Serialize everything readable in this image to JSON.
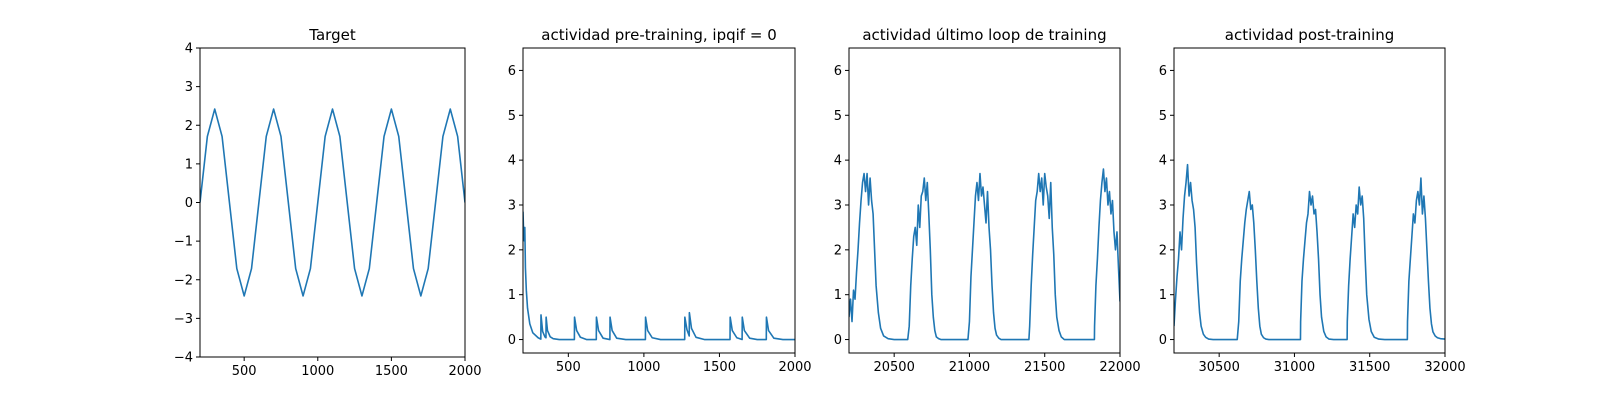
{
  "figure": {
    "background": "#ffffff",
    "line_color": "#1f77b4"
  },
  "chart_data": [
    {
      "id": "target",
      "type": "line",
      "title": "Target",
      "xlabel": "",
      "ylabel": "",
      "xlim": [
        200,
        2000
      ],
      "ylim": [
        -4,
        4
      ],
      "xticks": [
        500,
        1000,
        1500,
        2000
      ],
      "yticks": [
        -4,
        -3,
        -2,
        -1,
        0,
        1,
        2,
        3,
        4
      ],
      "grid": false,
      "series": [
        {
          "x": [
            200,
            250,
            300,
            350,
            400,
            450,
            500,
            550,
            600,
            650,
            700,
            750,
            800,
            850,
            900,
            950,
            1000,
            1050,
            1100,
            1150,
            1200,
            1250,
            1300,
            1350,
            1400,
            1450,
            1500,
            1550,
            1600,
            1650,
            1700,
            1750,
            1800,
            1850,
            1900,
            1950,
            2000
          ],
          "y": [
            0,
            1.71,
            2.42,
            1.71,
            0,
            -1.71,
            -2.42,
            -1.71,
            0,
            1.71,
            2.42,
            1.71,
            0,
            -1.71,
            -2.42,
            -1.71,
            0,
            1.71,
            2.42,
            1.71,
            0,
            -1.71,
            -2.42,
            -1.71,
            0,
            1.71,
            2.42,
            1.71,
            0,
            -1.71,
            -2.42,
            -1.71,
            0,
            1.71,
            2.42,
            1.71,
            0
          ]
        }
      ]
    },
    {
      "id": "pre-training",
      "type": "line",
      "title": "actividad pre-training, ipqif = 0",
      "xlabel": "",
      "ylabel": "",
      "xlim": [
        200,
        2000
      ],
      "ylim": [
        -0.3,
        6.5
      ],
      "xticks": [
        500,
        1000,
        1500,
        2000
      ],
      "yticks": [
        0,
        1,
        2,
        3,
        4,
        5,
        6
      ],
      "grid": false,
      "series": [
        {
          "x": [
            200,
            204,
            208,
            212,
            216,
            222,
            230,
            245,
            265,
            300,
            318,
            319,
            330,
            345,
            352,
            353,
            362,
            380,
            400,
            440,
            540,
            541,
            555,
            580,
            620,
            685,
            686,
            700,
            730,
            775,
            776,
            790,
            820,
            880,
            1010,
            1011,
            1025,
            1055,
            1110,
            1200,
            1270,
            1271,
            1285,
            1300,
            1301,
            1315,
            1345,
            1400,
            1500,
            1570,
            1571,
            1585,
            1615,
            1650,
            1651,
            1665,
            1700,
            1750,
            1810,
            1811,
            1825,
            1860,
            1920,
            2000
          ],
          "y": [
            2.85,
            2.4,
            2.2,
            2.5,
            1.6,
            1.1,
            0.7,
            0.35,
            0.15,
            0.04,
            0.01,
            0.55,
            0.18,
            0.06,
            0.04,
            0.5,
            0.2,
            0.06,
            0.02,
            0.0,
            0.0,
            0.5,
            0.2,
            0.05,
            0.0,
            0.0,
            0.5,
            0.2,
            0.03,
            0.0,
            0.5,
            0.2,
            0.03,
            0.0,
            0.0,
            0.5,
            0.2,
            0.04,
            0.0,
            0.0,
            0.0,
            0.5,
            0.22,
            0.08,
            0.6,
            0.25,
            0.05,
            0.0,
            0.0,
            0.0,
            0.5,
            0.2,
            0.04,
            0.0,
            0.5,
            0.2,
            0.03,
            0.0,
            0.0,
            0.5,
            0.2,
            0.03,
            0.0,
            0.0
          ]
        }
      ]
    },
    {
      "id": "last-training-loop",
      "type": "line",
      "title": "actividad último loop de training",
      "xlabel": "",
      "ylabel": "",
      "xlim": [
        20200,
        22000
      ],
      "ylim": [
        -0.3,
        6.5
      ],
      "xticks": [
        20500,
        21000,
        21500,
        22000
      ],
      "yticks": [
        0,
        1,
        2,
        3,
        4,
        5,
        6
      ],
      "grid": false,
      "series": [
        {
          "x": [
            20200,
            20210,
            20220,
            20230,
            20240,
            20250,
            20260,
            20270,
            20280,
            20290,
            20300,
            20310,
            20320,
            20330,
            20340,
            20350,
            20360,
            20370,
            20380,
            20395,
            20410,
            20430,
            20460,
            20500,
            20550,
            20590,
            20600,
            20610,
            20620,
            20630,
            20640,
            20650,
            20660,
            20670,
            20680,
            20690,
            20700,
            20710,
            20720,
            20730,
            20740,
            20750,
            20760,
            20770,
            20780,
            20795,
            20810,
            20830,
            20860,
            20900,
            20960,
            20990,
            21000,
            21010,
            21020,
            21030,
            21040,
            21050,
            21060,
            21070,
            21080,
            21090,
            21100,
            21110,
            21120,
            21130,
            21140,
            21150,
            21160,
            21170,
            21180,
            21195,
            21210,
            21230,
            21260,
            21300,
            21360,
            21395,
            21400,
            21410,
            21420,
            21430,
            21440,
            21450,
            21460,
            21470,
            21480,
            21490,
            21500,
            21510,
            21520,
            21530,
            21540,
            21550,
            21560,
            21570,
            21580,
            21595,
            21610,
            21630,
            21660,
            21700,
            21760,
            21800,
            21830,
            21831,
            21840,
            21850,
            21860,
            21870,
            21880,
            21890,
            21900,
            21910,
            21920,
            21930,
            21940,
            21950,
            21960,
            21970,
            21980,
            21990,
            22000
          ],
          "y": [
            0.5,
            0.9,
            0.4,
            1.1,
            0.9,
            1.5,
            2.0,
            2.6,
            3.1,
            3.5,
            3.7,
            3.3,
            3.7,
            3.0,
            3.6,
            3.1,
            2.8,
            2.0,
            1.2,
            0.6,
            0.25,
            0.08,
            0.02,
            0.0,
            0.0,
            0.0,
            0.3,
            1.2,
            1.8,
            2.3,
            2.5,
            2.1,
            3.0,
            2.5,
            3.2,
            3.3,
            3.6,
            3.1,
            3.5,
            2.8,
            2.0,
            1.0,
            0.5,
            0.2,
            0.06,
            0.02,
            0.0,
            0.0,
            0.0,
            0.0,
            0.0,
            0.0,
            0.4,
            1.4,
            2.0,
            2.6,
            3.2,
            3.5,
            3.1,
            3.7,
            3.2,
            3.4,
            3.0,
            2.6,
            3.3,
            2.5,
            2.0,
            1.2,
            0.6,
            0.25,
            0.1,
            0.03,
            0.0,
            0.0,
            0.0,
            0.0,
            0.0,
            0.0,
            0.3,
            1.2,
            1.9,
            2.5,
            3.1,
            3.3,
            3.7,
            3.3,
            3.6,
            3.0,
            3.7,
            3.4,
            3.2,
            2.7,
            3.5,
            2.5,
            1.9,
            1.0,
            0.5,
            0.2,
            0.06,
            0.0,
            0.0,
            0.0,
            0.0,
            0.0,
            0.0,
            0.3,
            1.2,
            1.8,
            2.5,
            3.1,
            3.5,
            3.8,
            3.3,
            3.6,
            3.0,
            3.3,
            2.8,
            3.1,
            2.4,
            2.0,
            2.4,
            1.6,
            0.85
          ]
        }
      ]
    },
    {
      "id": "post-training",
      "type": "line",
      "title": "actividad post-training",
      "xlabel": "",
      "ylabel": "",
      "xlim": [
        30200,
        32000
      ],
      "ylim": [
        -0.3,
        6.5
      ],
      "xticks": [
        30500,
        31000,
        31500,
        32000
      ],
      "yticks": [
        0,
        1,
        2,
        3,
        4,
        5,
        6
      ],
      "grid": false,
      "series": [
        {
          "x": [
            30200,
            30210,
            30220,
            30230,
            30240,
            30250,
            30260,
            30270,
            30280,
            30290,
            30300,
            30310,
            30320,
            30330,
            30340,
            30350,
            30360,
            30370,
            30380,
            30395,
            30410,
            30430,
            30460,
            30500,
            30560,
            30620,
            30630,
            30640,
            30650,
            30660,
            30670,
            30680,
            30690,
            30700,
            30710,
            30720,
            30730,
            30740,
            30750,
            30760,
            30770,
            30780,
            30795,
            30810,
            30830,
            30860,
            30900,
            30960,
            31020,
            31040,
            31041,
            31050,
            31060,
            31070,
            31080,
            31090,
            31100,
            31110,
            31120,
            31130,
            31140,
            31150,
            31160,
            31170,
            31180,
            31195,
            31210,
            31230,
            31260,
            31300,
            31340,
            31350,
            31351,
            31360,
            31370,
            31380,
            31390,
            31400,
            31410,
            31420,
            31430,
            31440,
            31450,
            31460,
            31470,
            31480,
            31495,
            31510,
            31530,
            31560,
            31600,
            31660,
            31720,
            31750,
            31751,
            31760,
            31770,
            31780,
            31790,
            31800,
            31810,
            31820,
            31830,
            31840,
            31850,
            31860,
            31870,
            31880,
            31890,
            31900,
            31910,
            31920,
            31935,
            31950,
            31970,
            32000
          ],
          "y": [
            0.3,
            0.9,
            1.4,
            1.8,
            2.4,
            2.0,
            2.7,
            3.2,
            3.5,
            3.9,
            3.2,
            3.5,
            3.1,
            2.9,
            2.5,
            1.7,
            1.1,
            0.6,
            0.3,
            0.12,
            0.05,
            0.01,
            0.0,
            0.0,
            0.0,
            0.0,
            0.4,
            1.3,
            1.8,
            2.2,
            2.6,
            2.9,
            3.1,
            3.3,
            2.9,
            3.0,
            2.6,
            2.0,
            1.3,
            0.7,
            0.3,
            0.12,
            0.04,
            0.01,
            0.0,
            0.0,
            0.0,
            0.0,
            0.0,
            0.0,
            0.4,
            1.3,
            1.8,
            2.2,
            2.6,
            2.8,
            3.3,
            3.0,
            3.2,
            2.8,
            2.9,
            2.4,
            1.8,
            1.0,
            0.5,
            0.18,
            0.06,
            0.01,
            0.0,
            0.0,
            0.0,
            0.0,
            0.4,
            1.2,
            1.8,
            2.3,
            2.8,
            2.5,
            3.0,
            2.8,
            3.4,
            3.0,
            3.2,
            2.7,
            1.8,
            1.0,
            0.45,
            0.18,
            0.05,
            0.01,
            0.0,
            0.0,
            0.0,
            0.0,
            0.4,
            1.3,
            1.8,
            2.3,
            2.8,
            2.6,
            3.1,
            3.3,
            3.0,
            3.6,
            2.8,
            3.2,
            2.7,
            2.0,
            1.3,
            0.7,
            0.35,
            0.17,
            0.08,
            0.04,
            0.02,
            0.01
          ]
        }
      ]
    }
  ]
}
